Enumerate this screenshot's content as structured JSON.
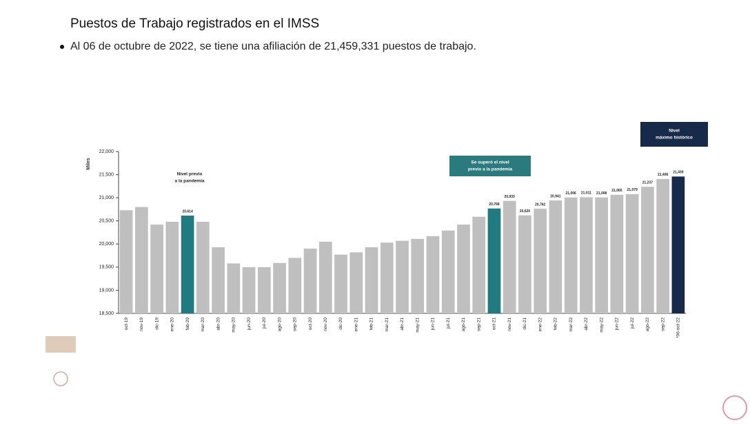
{
  "slide": {
    "title": "Puestos de Trabajo registrados en el IMSS",
    "bullet": "Al 06 de octubre de 2022, se tiene una afiliación de 21,459,331 puestos de trabajo."
  },
  "chart_data": {
    "type": "bar",
    "y_label": "Miles",
    "categories": [
      "oct-19",
      "nov-19",
      "dic-19",
      "ene-20",
      "feb-20",
      "mar-20",
      "abr-20",
      "may-20",
      "jun-20",
      "jul-20",
      "ago-20",
      "sep-20",
      "oct-20",
      "nov-20",
      "dic-20",
      "ene-21",
      "feb-21",
      "mar-21",
      "abr-21",
      "may-21",
      "jun-21",
      "jul-21",
      "ago-21",
      "sep-21",
      "oct-21",
      "nov-21",
      "dic-21",
      "ene-22",
      "feb-22",
      "mar-22",
      "abr-22",
      "may-22",
      "jun-22",
      "jul-22",
      "ago-22",
      "sep-22",
      "*06-oct-22"
    ],
    "values": [
      20730,
      20800,
      20420,
      20480,
      20614,
      20480,
      19930,
      19580,
      19500,
      19500,
      19590,
      19700,
      19900,
      20050,
      19770,
      19820,
      19930,
      20030,
      20070,
      20110,
      20170,
      20290,
      20420,
      20590,
      20768,
      20933,
      20620,
      20762,
      20941,
      21006,
      21011,
      21008,
      21065,
      21079,
      21237,
      21406,
      21459
    ],
    "value_labels": [
      null,
      null,
      null,
      null,
      "20,614",
      null,
      null,
      null,
      null,
      null,
      null,
      null,
      null,
      null,
      null,
      null,
      null,
      null,
      null,
      null,
      null,
      null,
      null,
      null,
      "20,768",
      "20,933",
      "20,620",
      "20,762",
      "20,941",
      "21,006",
      "21,011",
      "21,008",
      "21,065",
      "21,079",
      "21,237",
      "21,406",
      "21,459"
    ],
    "colors": [
      "#bfbfbf",
      "#bfbfbf",
      "#bfbfbf",
      "#bfbfbf",
      "#1f7b80",
      "#bfbfbf",
      "#bfbfbf",
      "#bfbfbf",
      "#bfbfbf",
      "#bfbfbf",
      "#bfbfbf",
      "#bfbfbf",
      "#bfbfbf",
      "#bfbfbf",
      "#bfbfbf",
      "#bfbfbf",
      "#bfbfbf",
      "#bfbfbf",
      "#bfbfbf",
      "#bfbfbf",
      "#bfbfbf",
      "#bfbfbf",
      "#bfbfbf",
      "#bfbfbf",
      "#1f7b80",
      "#bfbfbf",
      "#bfbfbf",
      "#bfbfbf",
      "#bfbfbf",
      "#bfbfbf",
      "#bfbfbf",
      "#bfbfbf",
      "#bfbfbf",
      "#bfbfbf",
      "#bfbfbf",
      "#bfbfbf",
      "#172a4a"
    ],
    "ylim": [
      18500,
      22000
    ],
    "yticks": [
      {
        "value": 18500,
        "label": "18,500"
      },
      {
        "value": 19000,
        "label": "19,000"
      },
      {
        "value": 19500,
        "label": "19,500"
      },
      {
        "value": 20000,
        "label": "20,000"
      },
      {
        "value": 20500,
        "label": "20,500"
      },
      {
        "value": 21000,
        "label": "21,000"
      },
      {
        "value": 21500,
        "label": "21,500"
      },
      {
        "value": 22000,
        "label": "22,000"
      }
    ],
    "annotations": [
      {
        "lines": [
          "Nivel previo",
          "a la pandemia"
        ]
      },
      {
        "lines": [
          "Se superó el nivel",
          "previo a la pandemia"
        ],
        "color": "#2b7a7e"
      },
      {
        "lines": [
          "Nivel",
          "máximo histórico"
        ],
        "color": "#172a4a"
      }
    ]
  }
}
